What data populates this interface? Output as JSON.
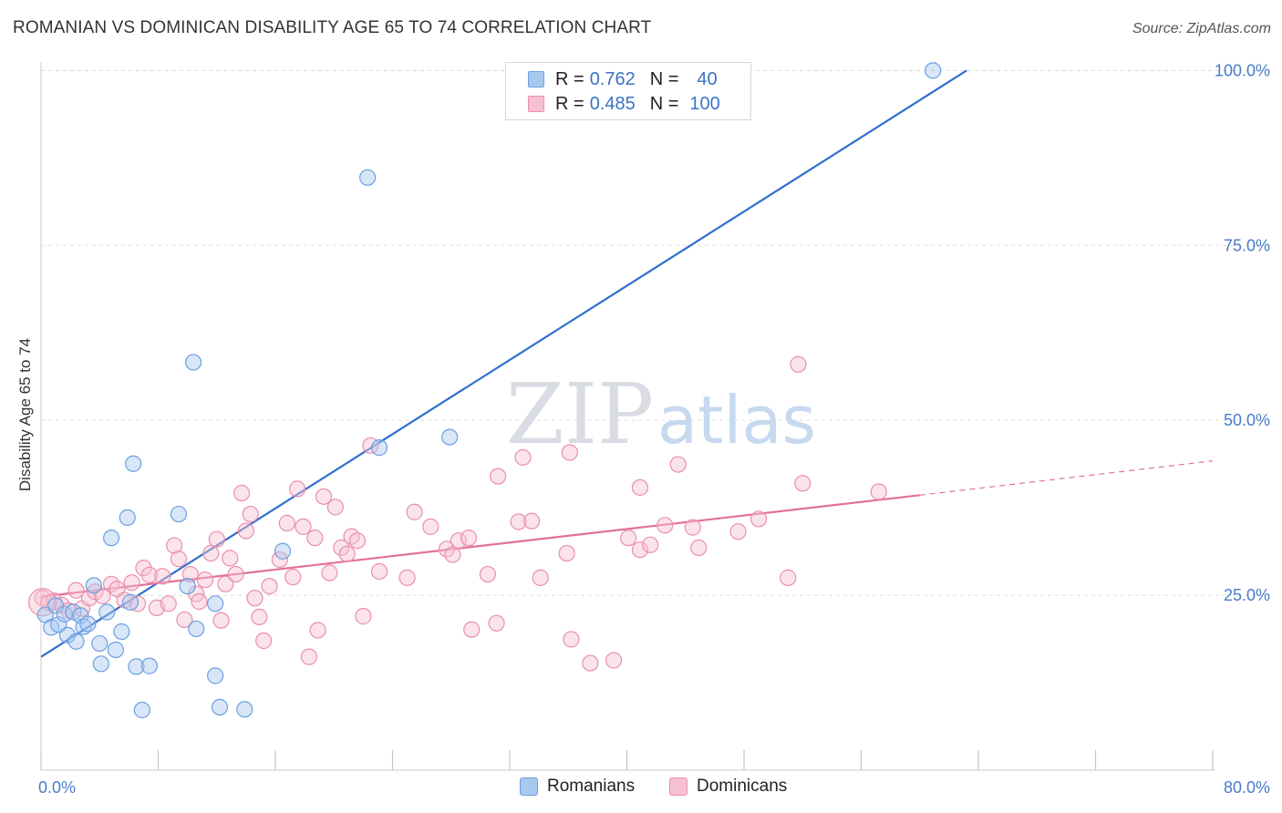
{
  "title": "ROMANIAN VS DOMINICAN DISABILITY AGE 65 TO 74 CORRELATION CHART",
  "source": "Source: ZipAtlas.com",
  "watermark": {
    "zip": "ZIP",
    "atlas": "atlas"
  },
  "legend": {
    "rows": [
      {
        "r_label": "R =",
        "r_value": "0.762",
        "n_label": "N =",
        "n_value": "40"
      },
      {
        "r_label": "R =",
        "r_value": "0.485",
        "n_label": "N =",
        "n_value": "100"
      }
    ]
  },
  "bottom_legend": {
    "romanians": "Romanians",
    "dominicans": "Dominicans"
  },
  "colors": {
    "romanians_fill": "#a9c8f0",
    "romanians_stroke": "#6c9fe0",
    "romanians_line": "#2f6fcf",
    "dominicans_fill": "#f7c0d0",
    "dominicans_stroke": "#ea8fab",
    "dominicans_line": "#e2709a",
    "axis_text": "#4a7cc9",
    "grid": "#dddddd"
  },
  "chart_data": {
    "type": "scatter",
    "title": "ROMANIAN VS DOMINICAN DISABILITY AGE 65 TO 74 CORRELATION CHART",
    "xlabel": "",
    "ylabel": "Disability Age 65 to 74",
    "xlim": [
      0,
      80
    ],
    "ylim": [
      0,
      102
    ],
    "x_tick_labels": [
      "0.0%",
      "80.0%"
    ],
    "y_ticks": [
      25,
      50,
      75,
      100
    ],
    "y_tick_labels": [
      "25.0%",
      "50.0%",
      "75.0%",
      "100.0%"
    ],
    "grid": true,
    "legend_position": "top-center",
    "series": [
      {
        "name": "Romanians",
        "R": 0.762,
        "N": 40,
        "trend": {
          "x": [
            0,
            63.2
          ],
          "y": [
            16.2,
            100.0
          ]
        },
        "points": [
          [
            0.3,
            22.2
          ],
          [
            0.7,
            20.4
          ],
          [
            1.0,
            23.5
          ],
          [
            1.2,
            20.8
          ],
          [
            1.6,
            22.3
          ],
          [
            1.8,
            19.3
          ],
          [
            2.2,
            22.6
          ],
          [
            2.4,
            18.4
          ],
          [
            2.7,
            22.1
          ],
          [
            2.9,
            20.5
          ],
          [
            3.2,
            20.9
          ],
          [
            3.6,
            26.4
          ],
          [
            4.0,
            18.1
          ],
          [
            4.1,
            15.2
          ],
          [
            4.5,
            22.6
          ],
          [
            4.8,
            33.2
          ],
          [
            5.1,
            17.2
          ],
          [
            5.5,
            19.8
          ],
          [
            5.9,
            36.1
          ],
          [
            6.1,
            24.0
          ],
          [
            6.3,
            43.8
          ],
          [
            6.5,
            14.8
          ],
          [
            6.9,
            8.6
          ],
          [
            7.4,
            14.9
          ],
          [
            9.4,
            36.6
          ],
          [
            10.0,
            26.3
          ],
          [
            10.4,
            58.3
          ],
          [
            10.6,
            20.2
          ],
          [
            11.9,
            13.5
          ],
          [
            11.9,
            23.8
          ],
          [
            12.2,
            9.0
          ],
          [
            13.9,
            8.7
          ],
          [
            16.5,
            31.3
          ],
          [
            22.3,
            84.7
          ],
          [
            23.1,
            46.1
          ],
          [
            27.9,
            47.6
          ],
          [
            60.9,
            100.0
          ]
        ]
      },
      {
        "name": "Dominicans",
        "R": 0.485,
        "N": 100,
        "trend": {
          "x": [
            0,
            60.0,
            80.0
          ],
          "y": [
            24.8,
            39.3,
            44.2
          ]
        },
        "points": [
          [
            0.1,
            24.6
          ],
          [
            0.5,
            23.9
          ],
          [
            0.9,
            24.2
          ],
          [
            1.4,
            23.6
          ],
          [
            1.9,
            22.8
          ],
          [
            2.4,
            25.7
          ],
          [
            2.8,
            23.1
          ],
          [
            3.3,
            24.6
          ],
          [
            3.7,
            25.5
          ],
          [
            4.2,
            24.9
          ],
          [
            4.8,
            26.6
          ],
          [
            5.2,
            25.9
          ],
          [
            5.7,
            24.3
          ],
          [
            6.2,
            26.8
          ],
          [
            6.6,
            23.8
          ],
          [
            7.0,
            28.9
          ],
          [
            7.4,
            27.9
          ],
          [
            7.9,
            23.2
          ],
          [
            8.3,
            27.7
          ],
          [
            8.7,
            23.8
          ],
          [
            9.1,
            32.1
          ],
          [
            9.4,
            30.2
          ],
          [
            9.8,
            21.5
          ],
          [
            10.2,
            28.0
          ],
          [
            10.6,
            25.2
          ],
          [
            10.8,
            24.1
          ],
          [
            11.2,
            27.2
          ],
          [
            11.6,
            31.0
          ],
          [
            12.0,
            33.0
          ],
          [
            12.3,
            21.4
          ],
          [
            12.6,
            26.6
          ],
          [
            12.9,
            30.3
          ],
          [
            13.3,
            28.0
          ],
          [
            13.7,
            39.6
          ],
          [
            14.0,
            34.2
          ],
          [
            14.3,
            36.6
          ],
          [
            14.6,
            24.6
          ],
          [
            14.9,
            21.9
          ],
          [
            15.2,
            18.5
          ],
          [
            15.6,
            26.3
          ],
          [
            16.3,
            30.1
          ],
          [
            16.8,
            35.3
          ],
          [
            17.2,
            27.6
          ],
          [
            17.5,
            40.2
          ],
          [
            17.9,
            34.8
          ],
          [
            18.3,
            16.2
          ],
          [
            18.7,
            33.2
          ],
          [
            18.9,
            20.0
          ],
          [
            19.3,
            39.1
          ],
          [
            19.7,
            28.2
          ],
          [
            20.1,
            37.6
          ],
          [
            20.5,
            31.8
          ],
          [
            20.9,
            30.9
          ],
          [
            21.2,
            33.4
          ],
          [
            21.6,
            32.8
          ],
          [
            22.0,
            22.0
          ],
          [
            22.5,
            46.4
          ],
          [
            23.1,
            28.4
          ],
          [
            25.0,
            27.5
          ],
          [
            25.5,
            36.9
          ],
          [
            26.6,
            34.8
          ],
          [
            27.7,
            31.6
          ],
          [
            28.1,
            30.8
          ],
          [
            28.5,
            32.8
          ],
          [
            29.2,
            33.2
          ],
          [
            29.4,
            20.1
          ],
          [
            30.5,
            28.0
          ],
          [
            31.1,
            21.0
          ],
          [
            31.2,
            42.0
          ],
          [
            32.6,
            35.5
          ],
          [
            32.9,
            44.7
          ],
          [
            33.5,
            35.6
          ],
          [
            34.1,
            27.5
          ],
          [
            35.9,
            31.0
          ],
          [
            36.1,
            45.4
          ],
          [
            36.2,
            18.7
          ],
          [
            37.5,
            15.3
          ],
          [
            39.1,
            15.7
          ],
          [
            40.1,
            33.2
          ],
          [
            40.9,
            31.5
          ],
          [
            40.9,
            40.4
          ],
          [
            41.6,
            32.2
          ],
          [
            42.6,
            35.0
          ],
          [
            43.5,
            43.7
          ],
          [
            44.5,
            34.7
          ],
          [
            44.9,
            31.8
          ],
          [
            47.6,
            34.1
          ],
          [
            49.0,
            35.9
          ],
          [
            51.0,
            27.5
          ],
          [
            51.7,
            58.0
          ],
          [
            52.0,
            41.0
          ],
          [
            57.2,
            39.8
          ]
        ]
      }
    ]
  }
}
